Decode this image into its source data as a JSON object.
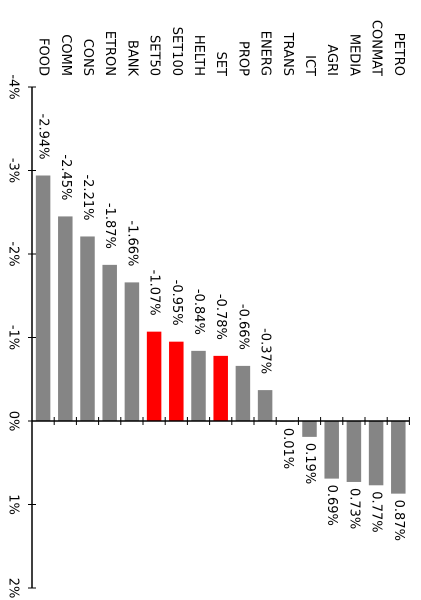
{
  "chart_data": {
    "type": "bar",
    "orientation": "rotated-90-clockwise",
    "categories": [
      "FOOD",
      "COMM",
      "CONS",
      "ETRON",
      "BANK",
      "SET50",
      "SET100",
      "HELTH",
      "SET",
      "PROP",
      "ENERG",
      "TRANS",
      "ICT",
      "AGRI",
      "MEDIA",
      "CONMAT",
      "PETRO"
    ],
    "values": [
      -2.94,
      -2.45,
      -2.21,
      -1.87,
      -1.66,
      -1.07,
      -0.95,
      -0.84,
      -0.78,
      -0.66,
      -0.37,
      0.01,
      0.19,
      0.69,
      0.73,
      0.77,
      0.87
    ],
    "value_labels": [
      "-2.94%",
      "-2.45%",
      "-2.21%",
      "-1.87%",
      "-1.66%",
      "-1.07%",
      "-0.95%",
      "-0.84%",
      "-0.78%",
      "-0.66%",
      "-0.37%",
      "0.01%",
      "0.19%",
      "0.69%",
      "0.73%",
      "0.77%",
      "0.87%"
    ],
    "highlighted": [
      "SET50",
      "SET100",
      "SET"
    ],
    "ylim": [
      -4,
      2
    ],
    "y_ticks": [
      -4,
      -3,
      -2,
      -1,
      0,
      1,
      2
    ],
    "y_tick_labels": [
      "-4%",
      "-3%",
      "-2%",
      "-1%",
      "0%",
      "1%",
      "2%"
    ],
    "grid": false,
    "colors": {
      "bar": "#858585",
      "highlight": "#ff0000",
      "axis": "#000000",
      "text": "#000000"
    }
  }
}
